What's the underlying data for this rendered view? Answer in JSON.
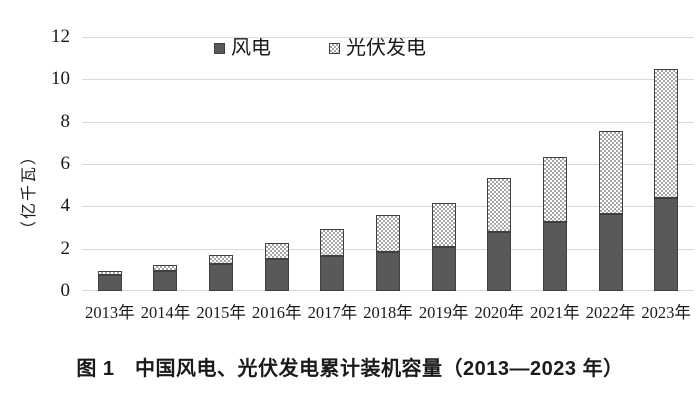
{
  "figure": {
    "caption": "图 1　中国风电、光伏发电累计装机容量（2013—2023 年）"
  },
  "chart_data": {
    "type": "bar",
    "stacked": true,
    "categories": [
      "2013年",
      "2014年",
      "2015年",
      "2016年",
      "2017年",
      "2018年",
      "2019年",
      "2020年",
      "2021年",
      "2022年",
      "2023年"
    ],
    "series": [
      {
        "name": "风电",
        "pattern": "solid",
        "values": [
          0.77,
          0.96,
          1.29,
          1.49,
          1.64,
          1.84,
          2.1,
          2.81,
          3.28,
          3.65,
          4.41
        ]
      },
      {
        "name": "光伏发电",
        "pattern": "checker",
        "values": [
          0.19,
          0.28,
          0.43,
          0.77,
          1.3,
          1.74,
          2.04,
          2.53,
          3.06,
          3.93,
          6.09
        ]
      }
    ],
    "xlabel": "",
    "ylabel": "（亿千瓦）",
    "ylim": [
      0,
      12
    ],
    "yticks": [
      12,
      10,
      8,
      6,
      4,
      2,
      0
    ],
    "grid": true,
    "legend_position": "top-center"
  },
  "colors": {
    "wind_fill": "#595959",
    "pv_checker": "#a6a6a6",
    "bar_border": "#404040",
    "gridline": "#d9d9d9",
    "text": "#1a1a1a",
    "background": "#ffffff"
  }
}
